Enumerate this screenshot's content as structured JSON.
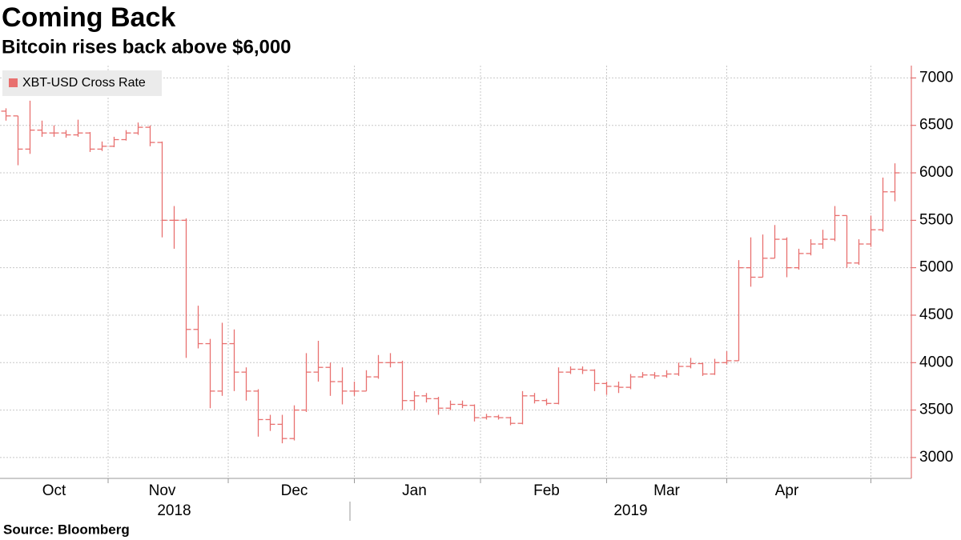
{
  "chart_data": {
    "type": "ohlc",
    "title": "Coming Back",
    "subtitle": "Bitcoin rises back above $6,000",
    "source": "Source: Bloomberg",
    "categories": [
      null,
      null,
      null,
      null,
      "Oct",
      null,
      null,
      null,
      null,
      null,
      null,
      null,
      null,
      "Nov",
      null,
      null,
      null,
      null,
      null,
      null,
      null,
      null,
      null,
      null,
      "Dec",
      null,
      null,
      null,
      null,
      null,
      null,
      null,
      null,
      null,
      "Jan",
      null,
      null,
      null,
      null,
      null,
      null,
      null,
      null,
      null,
      null,
      "Feb",
      null,
      null,
      null,
      null,
      null,
      null,
      null,
      null,
      null,
      "Mar",
      null,
      null,
      null,
      null,
      null,
      null,
      null,
      null,
      null,
      "Apr",
      null,
      null,
      null,
      null,
      null,
      null,
      null,
      null,
      null
    ],
    "x_groups": [
      null,
      null,
      null,
      null,
      null,
      null,
      null,
      null,
      null,
      null,
      null,
      null,
      null,
      null,
      "2018",
      null,
      null,
      null,
      null,
      null,
      null,
      null,
      null,
      null,
      null,
      null,
      null,
      null,
      null,
      null,
      null,
      null,
      null,
      null,
      null,
      null,
      null,
      null,
      null,
      null,
      null,
      null,
      null,
      null,
      null,
      null,
      null,
      null,
      null,
      null,
      null,
      null,
      "2019",
      null,
      null,
      null,
      null,
      null,
      null,
      null,
      null,
      null,
      null,
      null,
      null,
      null,
      null,
      null,
      null,
      null,
      null,
      null,
      null,
      null,
      null
    ],
    "series": [
      {
        "name": "XBT-USD Cross Rate",
        "color": "#e8706f",
        "open": [
          6650,
          6600,
          6250,
          6450,
          6420,
          6420,
          6400,
          6420,
          6250,
          6280,
          6350,
          6420,
          6480,
          6320,
          5500,
          5500,
          4350,
          4200,
          3700,
          4200,
          3900,
          3700,
          3400,
          3350,
          3200,
          3500,
          3900,
          3950,
          3800,
          3700,
          3700,
          3850,
          4000,
          4000,
          3600,
          3650,
          3620,
          3520,
          3560,
          3550,
          3420,
          3430,
          3420,
          3360,
          3650,
          3600,
          3570,
          3900,
          3930,
          3920,
          3780,
          3750,
          3740,
          3850,
          3870,
          3860,
          3880,
          3960,
          3990,
          3880,
          4000,
          4020,
          5000,
          4900,
          5100,
          5300,
          5000,
          5150,
          5250,
          5300,
          5550,
          5050,
          5250,
          5400,
          5800
        ],
        "high": [
          6680,
          6600,
          6760,
          6550,
          6500,
          6450,
          6560,
          6430,
          6330,
          6380,
          6450,
          6530,
          6500,
          6330,
          5650,
          5520,
          4600,
          4250,
          4420,
          4350,
          3950,
          3720,
          3450,
          3450,
          3550,
          4100,
          4230,
          4000,
          3950,
          3800,
          3920,
          4080,
          4100,
          4020,
          3700,
          3680,
          3640,
          3600,
          3600,
          3560,
          3460,
          3450,
          3430,
          3700,
          3680,
          3620,
          3950,
          3960,
          3960,
          3930,
          3800,
          3800,
          3880,
          3900,
          3900,
          3920,
          4000,
          4050,
          4000,
          4040,
          4120,
          5080,
          5320,
          5350,
          5450,
          5320,
          5200,
          5300,
          5400,
          5650,
          5550,
          5300,
          5550,
          5950,
          6100
        ],
        "low": [
          6550,
          6080,
          6200,
          6380,
          6380,
          6370,
          6380,
          6220,
          6230,
          6270,
          6340,
          6400,
          6280,
          5320,
          5200,
          4050,
          4150,
          3520,
          3650,
          3700,
          3600,
          3220,
          3280,
          3150,
          3180,
          3480,
          3800,
          3650,
          3560,
          3650,
          3700,
          3830,
          3950,
          3500,
          3500,
          3580,
          3450,
          3500,
          3520,
          3380,
          3400,
          3400,
          3340,
          3350,
          3570,
          3550,
          3560,
          3880,
          3880,
          3700,
          3660,
          3680,
          3720,
          3840,
          3830,
          3840,
          3860,
          3940,
          3860,
          3870,
          3980,
          4020,
          4800,
          4900,
          5100,
          4900,
          4980,
          5130,
          5200,
          5280,
          5000,
          5030,
          5220,
          5380,
          5700
        ],
        "close": [
          6600,
          6250,
          6450,
          6420,
          6420,
          6400,
          6420,
          6250,
          6280,
          6350,
          6420,
          6480,
          6320,
          5500,
          5500,
          4350,
          4200,
          3700,
          4200,
          3900,
          3700,
          3400,
          3350,
          3200,
          3500,
          3900,
          3950,
          3800,
          3700,
          3700,
          3850,
          4000,
          4000,
          3600,
          3650,
          3620,
          3520,
          3560,
          3550,
          3420,
          3430,
          3420,
          3360,
          3650,
          3600,
          3570,
          3900,
          3930,
          3920,
          3780,
          3750,
          3740,
          3850,
          3870,
          3860,
          3880,
          3960,
          3990,
          3880,
          4000,
          4020,
          5000,
          4900,
          5100,
          5300,
          5000,
          5150,
          5250,
          5300,
          5550,
          5050,
          5250,
          5400,
          5800,
          6000
        ]
      }
    ],
    "ylim": [
      2780,
      7130
    ],
    "yticks": [
      3000,
      3500,
      4000,
      4500,
      5000,
      5500,
      6000,
      6500,
      7000
    ],
    "grid": true,
    "axis_color": "#e05a5a",
    "legend": "upper left"
  }
}
